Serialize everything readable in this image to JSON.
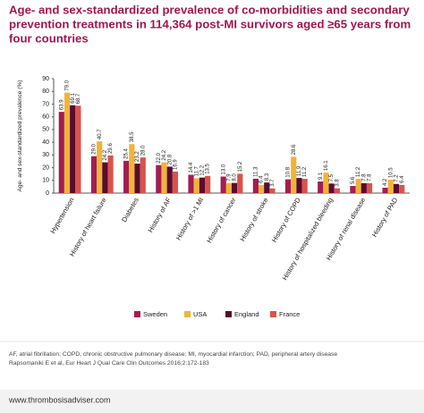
{
  "chart_data": {
    "type": "bar",
    "title": [
      "Age- and sex-standardized prevalence of co-morbidities and secondary",
      "prevention treatments in 114,364 post-MI survivors aged ≥65 years from",
      "four countries"
    ],
    "y_label": "Age- and sex-standardized prevalence (%)",
    "categories": [
      "Hypertension",
      "History of heart failure",
      "Diabetes",
      "History of AF",
      "History of >1 MI",
      "History of cancer",
      "History of stroke",
      "History of COPD",
      "History of hospitalized bleeding",
      "History of renal disease",
      "History of PAD"
    ],
    "series": [
      {
        "name": "Sweden",
        "color": "#a31d52",
        "values": [
          63.9,
          29.0,
          25.4,
          22.0,
          14.4,
          13.0,
          11.3,
          10.8,
          9.1,
          5.6,
          4.2
        ],
        "value_labels": [
          "63.9",
          "29.0",
          "25.4",
          "22.0",
          "14.4",
          "13.0",
          "11.3",
          "10.8",
          "9.1",
          "5.6",
          "4.2"
        ]
      },
      {
        "name": "USA",
        "color": "#f0b43a",
        "values": [
          79.0,
          40.7,
          38.5,
          24.2,
          11.7,
          7.9,
          6.4,
          28.6,
          16.1,
          11.2,
          10.5
        ],
        "value_labels": [
          "79.0",
          "40.7",
          "38.5",
          "24.2",
          "11.7",
          "7.9",
          "6.4",
          "28.6",
          "16.1",
          "11.2",
          "10.5"
        ]
      },
      {
        "name": "England",
        "color": "#5a0b30",
        "values": [
          69.1,
          24.2,
          23.2,
          20.8,
          12.2,
          8.0,
          8.3,
          11.9,
          7.5,
          7.8,
          7.2
        ],
        "value_labels": [
          "69.1",
          "24.2",
          "23.2",
          "20.8",
          "12.2",
          "8.0",
          "8.3",
          "11.9",
          "7.5",
          "7.8",
          "7.2"
        ]
      },
      {
        "name": "France",
        "color": "#d9534a",
        "values": [
          68.7,
          29.6,
          28.0,
          16.9,
          13.5,
          15.2,
          3.7,
          11.2,
          3.8,
          7.8,
          6.4
        ],
        "value_labels": [
          "68.7",
          "29.6",
          "28.0",
          "16.9",
          "13.5",
          "15.2",
          "3.7",
          "11.2",
          "3.8",
          "7.8",
          "6.4"
        ]
      }
    ],
    "ylim": [
      0,
      90
    ],
    "yticks": [
      0,
      10,
      20,
      30,
      40,
      50,
      60,
      70,
      80,
      90
    ],
    "grid": false,
    "legend": "bottom"
  },
  "footnote": "AF, atrial fibrillation; COPD, chronic obstructive pulmonary disease; MI, myocardial infarction; PAD, peripheral artery disease",
  "source": "Rapsomaniki E et al, Eur Heart J Qual Care Clin Outcomes 2016;2:172-183",
  "website": "www.thrombosisadviser.com"
}
